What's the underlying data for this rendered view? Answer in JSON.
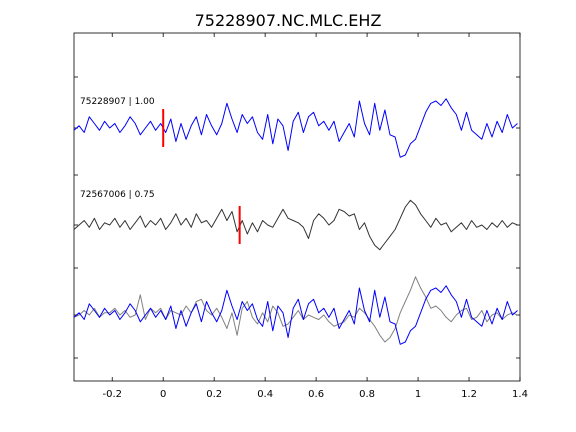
{
  "chart_data": {
    "type": "line",
    "title": "75228907.NC.MLC.EHZ",
    "xlabel": "",
    "ylabel": "",
    "xlim": [
      -0.35,
      1.4
    ],
    "x_ticks": [
      -0.2,
      0,
      0.2,
      0.4,
      0.6,
      0.8,
      1,
      1.2,
      1.4
    ],
    "x_tick_labels": [
      "-0.2",
      "0",
      "0.2",
      "0.4",
      "0.6",
      "0.8",
      "1",
      "1.2",
      "1.4"
    ],
    "grid": false,
    "panels": [
      {
        "label": "75228907 | 1.00",
        "pick_time": 0.0,
        "pick_color": "#ff0000",
        "series": [
          {
            "color": "#0000ff",
            "x": [
              -0.35,
              -0.33,
              -0.31,
              -0.29,
              -0.27,
              -0.25,
              -0.23,
              -0.21,
              -0.19,
              -0.17,
              -0.15,
              -0.13,
              -0.11,
              -0.09,
              -0.07,
              -0.05,
              -0.03,
              -0.01,
              0.01,
              0.03,
              0.05,
              0.07,
              0.09,
              0.11,
              0.13,
              0.15,
              0.17,
              0.19,
              0.21,
              0.23,
              0.25,
              0.27,
              0.29,
              0.31,
              0.33,
              0.35,
              0.37,
              0.39,
              0.41,
              0.43,
              0.45,
              0.47,
              0.49,
              0.51,
              0.53,
              0.55,
              0.57,
              0.59,
              0.61,
              0.63,
              0.65,
              0.67,
              0.69,
              0.71,
              0.73,
              0.75,
              0.77,
              0.79,
              0.81,
              0.83,
              0.85,
              0.87,
              0.89,
              0.91,
              0.93,
              0.95,
              0.97,
              0.99,
              1.01,
              1.03,
              1.05,
              1.07,
              1.09,
              1.11,
              1.13,
              1.15,
              1.17,
              1.19,
              1.21,
              1.23,
              1.25,
              1.27,
              1.29,
              1.31,
              1.33,
              1.35,
              1.37,
              1.39
            ],
            "y": [
              -0.05,
              0.05,
              -0.1,
              0.25,
              0.1,
              -0.05,
              0.15,
              0.0,
              0.1,
              -0.1,
              0.05,
              0.25,
              0.1,
              -0.15,
              0.0,
              0.15,
              -0.05,
              0.1,
              -0.1,
              0.2,
              -0.3,
              0.1,
              -0.25,
              0.05,
              0.25,
              -0.15,
              0.3,
              0.05,
              -0.15,
              0.1,
              0.55,
              0.2,
              -0.1,
              0.3,
              0.1,
              0.25,
              -0.1,
              -0.25,
              0.3,
              -0.35,
              0.2,
              0.05,
              -0.5,
              0.15,
              0.35,
              -0.1,
              0.25,
              0.35,
              0.05,
              0.15,
              -0.05,
              0.15,
              -0.3,
              -0.1,
              0.1,
              -0.2,
              0.6,
              0.1,
              -0.15,
              0.55,
              -0.05,
              0.4,
              -0.15,
              -0.2,
              -0.65,
              -0.6,
              -0.35,
              -0.25,
              0.05,
              0.35,
              0.55,
              0.6,
              0.5,
              0.65,
              0.45,
              0.3,
              -0.05,
              0.35,
              -0.05,
              -0.15,
              -0.25,
              0.1,
              -0.2,
              0.15,
              -0.1,
              0.3,
              0.0,
              0.1
            ]
          }
        ]
      },
      {
        "label": "72567006 | 0.75",
        "pick_time": 0.3,
        "pick_color": "#ff0000",
        "series": [
          {
            "color": "#333333",
            "x": [
              -0.35,
              -0.33,
              -0.31,
              -0.29,
              -0.27,
              -0.25,
              -0.23,
              -0.21,
              -0.19,
              -0.17,
              -0.15,
              -0.13,
              -0.11,
              -0.09,
              -0.07,
              -0.05,
              -0.03,
              -0.01,
              0.01,
              0.03,
              0.05,
              0.07,
              0.09,
              0.11,
              0.13,
              0.15,
              0.17,
              0.19,
              0.21,
              0.23,
              0.25,
              0.27,
              0.29,
              0.31,
              0.33,
              0.35,
              0.37,
              0.39,
              0.41,
              0.43,
              0.45,
              0.47,
              0.49,
              0.51,
              0.53,
              0.55,
              0.57,
              0.59,
              0.61,
              0.63,
              0.65,
              0.67,
              0.69,
              0.71,
              0.73,
              0.75,
              0.77,
              0.79,
              0.81,
              0.83,
              0.85,
              0.87,
              0.89,
              0.91,
              0.93,
              0.95,
              0.97,
              0.99,
              1.01,
              1.03,
              1.05,
              1.07,
              1.09,
              1.11,
              1.13,
              1.15,
              1.17,
              1.19,
              1.21,
              1.23,
              1.25,
              1.27,
              1.29,
              1.31,
              1.33,
              1.35,
              1.37,
              1.39
            ],
            "y": [
              -0.1,
              0.0,
              0.1,
              -0.05,
              0.15,
              -0.1,
              0.05,
              0.0,
              0.15,
              -0.05,
              0.1,
              -0.1,
              0.05,
              0.2,
              -0.05,
              0.1,
              0.0,
              0.15,
              -0.1,
              0.05,
              0.25,
              0.0,
              0.15,
              -0.05,
              0.25,
              0.05,
              0.1,
              -0.05,
              0.15,
              0.35,
              0.1,
              0.3,
              -0.15,
              0.1,
              -0.2,
              0.05,
              -0.15,
              0.1,
              0.0,
              -0.05,
              0.15,
              0.35,
              0.15,
              0.1,
              0.05,
              -0.05,
              -0.3,
              0.1,
              0.25,
              0.15,
              0.0,
              0.1,
              0.35,
              0.3,
              0.2,
              0.25,
              -0.1,
              0.05,
              -0.25,
              -0.45,
              -0.55,
              -0.4,
              -0.25,
              -0.1,
              0.15,
              0.4,
              0.55,
              0.45,
              0.25,
              0.1,
              -0.05,
              0.15,
              0.0,
              0.05,
              -0.15,
              -0.05,
              0.05,
              -0.1,
              0.1,
              -0.05,
              0.0,
              -0.1,
              0.05,
              -0.05,
              0.1,
              -0.05,
              0.05,
              0.0
            ]
          }
        ]
      },
      {
        "label": "",
        "series": [
          {
            "color": "#808080",
            "x": [
              -0.35,
              -0.33,
              -0.31,
              -0.29,
              -0.27,
              -0.25,
              -0.23,
              -0.21,
              -0.19,
              -0.17,
              -0.15,
              -0.13,
              -0.11,
              -0.09,
              -0.07,
              -0.05,
              -0.03,
              -0.01,
              0.01,
              0.03,
              0.05,
              0.07,
              0.09,
              0.11,
              0.13,
              0.15,
              0.17,
              0.19,
              0.21,
              0.23,
              0.25,
              0.27,
              0.29,
              0.31,
              0.33,
              0.35,
              0.37,
              0.39,
              0.41,
              0.43,
              0.45,
              0.47,
              0.49,
              0.51,
              0.53,
              0.55,
              0.57,
              0.59,
              0.61,
              0.63,
              0.65,
              0.67,
              0.69,
              0.71,
              0.73,
              0.75,
              0.77,
              0.79,
              0.81,
              0.83,
              0.85,
              0.87,
              0.89,
              0.91,
              0.93,
              0.95,
              0.97,
              0.99,
              1.01,
              1.03,
              1.05,
              1.07,
              1.09,
              1.11,
              1.13,
              1.15,
              1.17,
              1.19,
              1.21,
              1.23,
              1.25,
              1.27,
              1.29,
              1.31,
              1.33,
              1.35,
              1.37,
              1.39
            ],
            "y": [
              -0.05,
              0.0,
              0.1,
              0.0,
              0.15,
              -0.05,
              0.05,
              0.05,
              0.15,
              0.0,
              0.1,
              -0.05,
              0.0,
              0.45,
              -0.1,
              0.15,
              0.05,
              0.15,
              -0.1,
              0.1,
              0.05,
              0.0,
              0.2,
              0.05,
              0.3,
              0.35,
              0.1,
              0.0,
              0.15,
              -0.05,
              -0.3,
              0.05,
              -0.45,
              0.15,
              0.3,
              -0.05,
              -0.2,
              0.05,
              -0.15,
              0.2,
              0.05,
              -0.25,
              -0.2,
              -0.05,
              0.1,
              -0.1,
              0.0,
              -0.05,
              -0.1,
              0.0,
              -0.15,
              -0.25,
              -0.2,
              -0.15,
              0.0,
              -0.05,
              0.15,
              0.05,
              -0.1,
              -0.25,
              -0.45,
              -0.6,
              -0.5,
              -0.3,
              0.05,
              0.3,
              0.55,
              0.85,
              0.6,
              0.4,
              0.15,
              0.2,
              0.1,
              -0.05,
              -0.15,
              0.0,
              0.1,
              0.15,
              -0.1,
              -0.05,
              0.1,
              -0.15,
              0.0,
              0.05,
              -0.1,
              0.0,
              0.05,
              0.0
            ]
          },
          {
            "color": "#0000ff",
            "x": [
              -0.35,
              -0.33,
              -0.31,
              -0.29,
              -0.27,
              -0.25,
              -0.23,
              -0.21,
              -0.19,
              -0.17,
              -0.15,
              -0.13,
              -0.11,
              -0.09,
              -0.07,
              -0.05,
              -0.03,
              -0.01,
              0.01,
              0.03,
              0.05,
              0.07,
              0.09,
              0.11,
              0.13,
              0.15,
              0.17,
              0.19,
              0.21,
              0.23,
              0.25,
              0.27,
              0.29,
              0.31,
              0.33,
              0.35,
              0.37,
              0.39,
              0.41,
              0.43,
              0.45,
              0.47,
              0.49,
              0.51,
              0.53,
              0.55,
              0.57,
              0.59,
              0.61,
              0.63,
              0.65,
              0.67,
              0.69,
              0.71,
              0.73,
              0.75,
              0.77,
              0.79,
              0.81,
              0.83,
              0.85,
              0.87,
              0.89,
              0.91,
              0.93,
              0.95,
              0.97,
              0.99,
              1.01,
              1.03,
              1.05,
              1.07,
              1.09,
              1.11,
              1.13,
              1.15,
              1.17,
              1.19,
              1.21,
              1.23,
              1.25,
              1.27,
              1.29,
              1.31,
              1.33,
              1.35,
              1.37,
              1.39
            ],
            "y": [
              -0.05,
              0.05,
              -0.1,
              0.25,
              0.1,
              -0.05,
              0.15,
              0.0,
              0.1,
              -0.1,
              0.05,
              0.25,
              0.1,
              -0.15,
              0.0,
              0.15,
              -0.05,
              0.1,
              -0.1,
              0.2,
              -0.3,
              0.1,
              -0.25,
              0.05,
              0.25,
              -0.15,
              0.3,
              0.05,
              -0.15,
              0.1,
              0.55,
              0.2,
              -0.1,
              0.3,
              0.1,
              0.25,
              -0.1,
              -0.25,
              0.3,
              -0.35,
              0.2,
              0.05,
              -0.5,
              0.15,
              0.35,
              -0.1,
              0.25,
              0.35,
              0.05,
              0.15,
              -0.05,
              0.15,
              -0.3,
              -0.1,
              0.1,
              -0.2,
              0.6,
              0.1,
              -0.15,
              0.55,
              -0.05,
              0.4,
              -0.15,
              -0.2,
              -0.65,
              -0.6,
              -0.35,
              -0.25,
              0.05,
              0.35,
              0.55,
              0.6,
              0.5,
              0.65,
              0.45,
              0.3,
              -0.05,
              0.35,
              -0.05,
              -0.15,
              -0.25,
              0.1,
              -0.2,
              0.15,
              -0.1,
              0.3,
              0.0,
              0.1
            ]
          }
        ]
      }
    ]
  }
}
